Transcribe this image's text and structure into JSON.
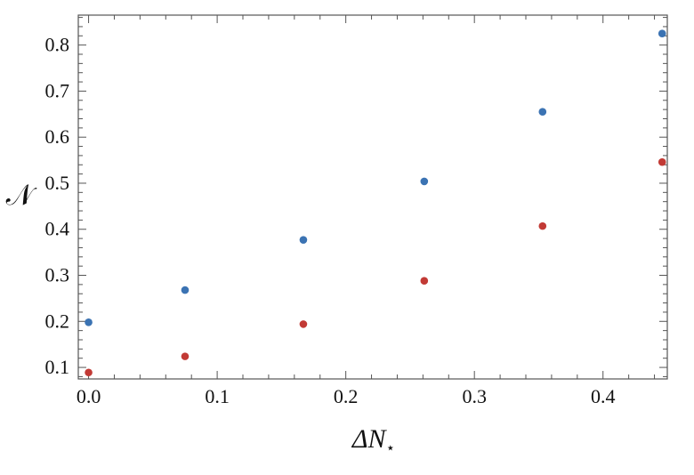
{
  "chart_data": {
    "type": "scatter",
    "xlabel": "ΔN",
    "xlabel_subscript": "⋆",
    "ylabel": "𝒩",
    "xlim": [
      -0.008,
      0.45
    ],
    "ylim": [
      0.075,
      0.865
    ],
    "x_ticks": [
      0.0,
      0.1,
      0.2,
      0.3,
      0.4
    ],
    "x_tick_labels": [
      "0.0",
      "0.1",
      "0.2",
      "0.3",
      "0.4"
    ],
    "y_ticks": [
      0.1,
      0.2,
      0.3,
      0.4,
      0.5,
      0.6,
      0.7,
      0.8
    ],
    "y_tick_labels": [
      "0.1",
      "0.2",
      "0.3",
      "0.4",
      "0.5",
      "0.6",
      "0.7",
      "0.8"
    ],
    "grid": false,
    "frame": true,
    "series": [
      {
        "color": "#3b73b3",
        "points": [
          {
            "x": 0.0,
            "y": 0.198
          },
          {
            "x": 0.075,
            "y": 0.268
          },
          {
            "x": 0.167,
            "y": 0.377
          },
          {
            "x": 0.261,
            "y": 0.504
          },
          {
            "x": 0.353,
            "y": 0.655
          },
          {
            "x": 0.446,
            "y": 0.825
          }
        ]
      },
      {
        "color": "#c23a35",
        "points": [
          {
            "x": 0.0,
            "y": 0.089
          },
          {
            "x": 0.075,
            "y": 0.124
          },
          {
            "x": 0.167,
            "y": 0.194
          },
          {
            "x": 0.261,
            "y": 0.288
          },
          {
            "x": 0.353,
            "y": 0.407
          },
          {
            "x": 0.446,
            "y": 0.546
          }
        ]
      }
    ]
  }
}
